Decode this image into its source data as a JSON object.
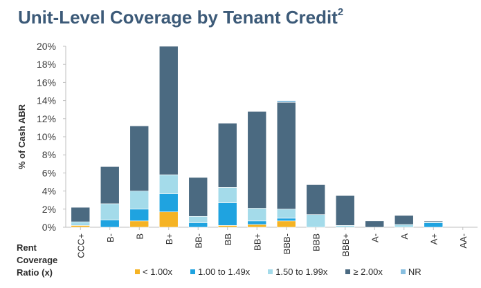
{
  "page": {
    "title": "Unit-Level Coverage by Tenant Credit",
    "title_sup": "2",
    "rcr_label": [
      "Rent",
      "Coverage",
      "Ratio (x)"
    ]
  },
  "chart_data": {
    "type": "bar",
    "stacked": true,
    "title": "Unit-Level Coverage by Tenant Credit",
    "ylabel": "% of Cash ABR",
    "xlabel": "Rent Coverage Ratio (x)",
    "ylim": [
      0,
      20
    ],
    "yticks": [
      "0%",
      "2%",
      "4%",
      "6%",
      "8%",
      "10%",
      "12%",
      "14%",
      "16%",
      "18%",
      "20%"
    ],
    "ytick_values": [
      0,
      2,
      4,
      6,
      8,
      10,
      12,
      14,
      16,
      18,
      20
    ],
    "categories": [
      "CCC+",
      "B-",
      "B",
      "B+",
      "BB-",
      "BB",
      "BB+",
      "BBB-",
      "BBB",
      "BBB+",
      "A-",
      "A",
      "A+",
      "AA-"
    ],
    "series": [
      {
        "name": "< 1.00x",
        "color": "#f5b324",
        "values": [
          0.2,
          0.0,
          0.7,
          1.7,
          0.0,
          0.2,
          0.3,
          0.7,
          0.0,
          0.0,
          0.0,
          0.0,
          0.0,
          0.0
        ]
      },
      {
        "name": "1.00 to 1.49x",
        "color": "#1fa3e0",
        "values": [
          0.1,
          0.8,
          1.3,
          2.0,
          0.5,
          2.5,
          0.4,
          0.3,
          0.0,
          0.0,
          0.0,
          0.0,
          0.5,
          0.0
        ]
      },
      {
        "name": "1.50 to 1.99x",
        "color": "#a4dbea",
        "values": [
          0.3,
          1.8,
          2.0,
          2.1,
          0.7,
          1.7,
          1.4,
          1.0,
          1.4,
          0.2,
          0.0,
          0.3,
          0.1,
          0.0
        ]
      },
      {
        "name": "≥ 2.00x",
        "color": "#4b6a81",
        "values": [
          1.6,
          4.1,
          7.2,
          14.2,
          4.3,
          7.1,
          10.7,
          11.8,
          3.3,
          3.3,
          0.7,
          1.0,
          0.1,
          0.0
        ]
      },
      {
        "name": "NR",
        "color": "#88bfe0",
        "values": [
          0.0,
          0.0,
          0.0,
          0.0,
          0.0,
          0.0,
          0.0,
          0.2,
          0.0,
          0.0,
          0.0,
          0.0,
          0.0,
          0.0
        ]
      }
    ],
    "legend_position": "bottom",
    "grid": false
  }
}
